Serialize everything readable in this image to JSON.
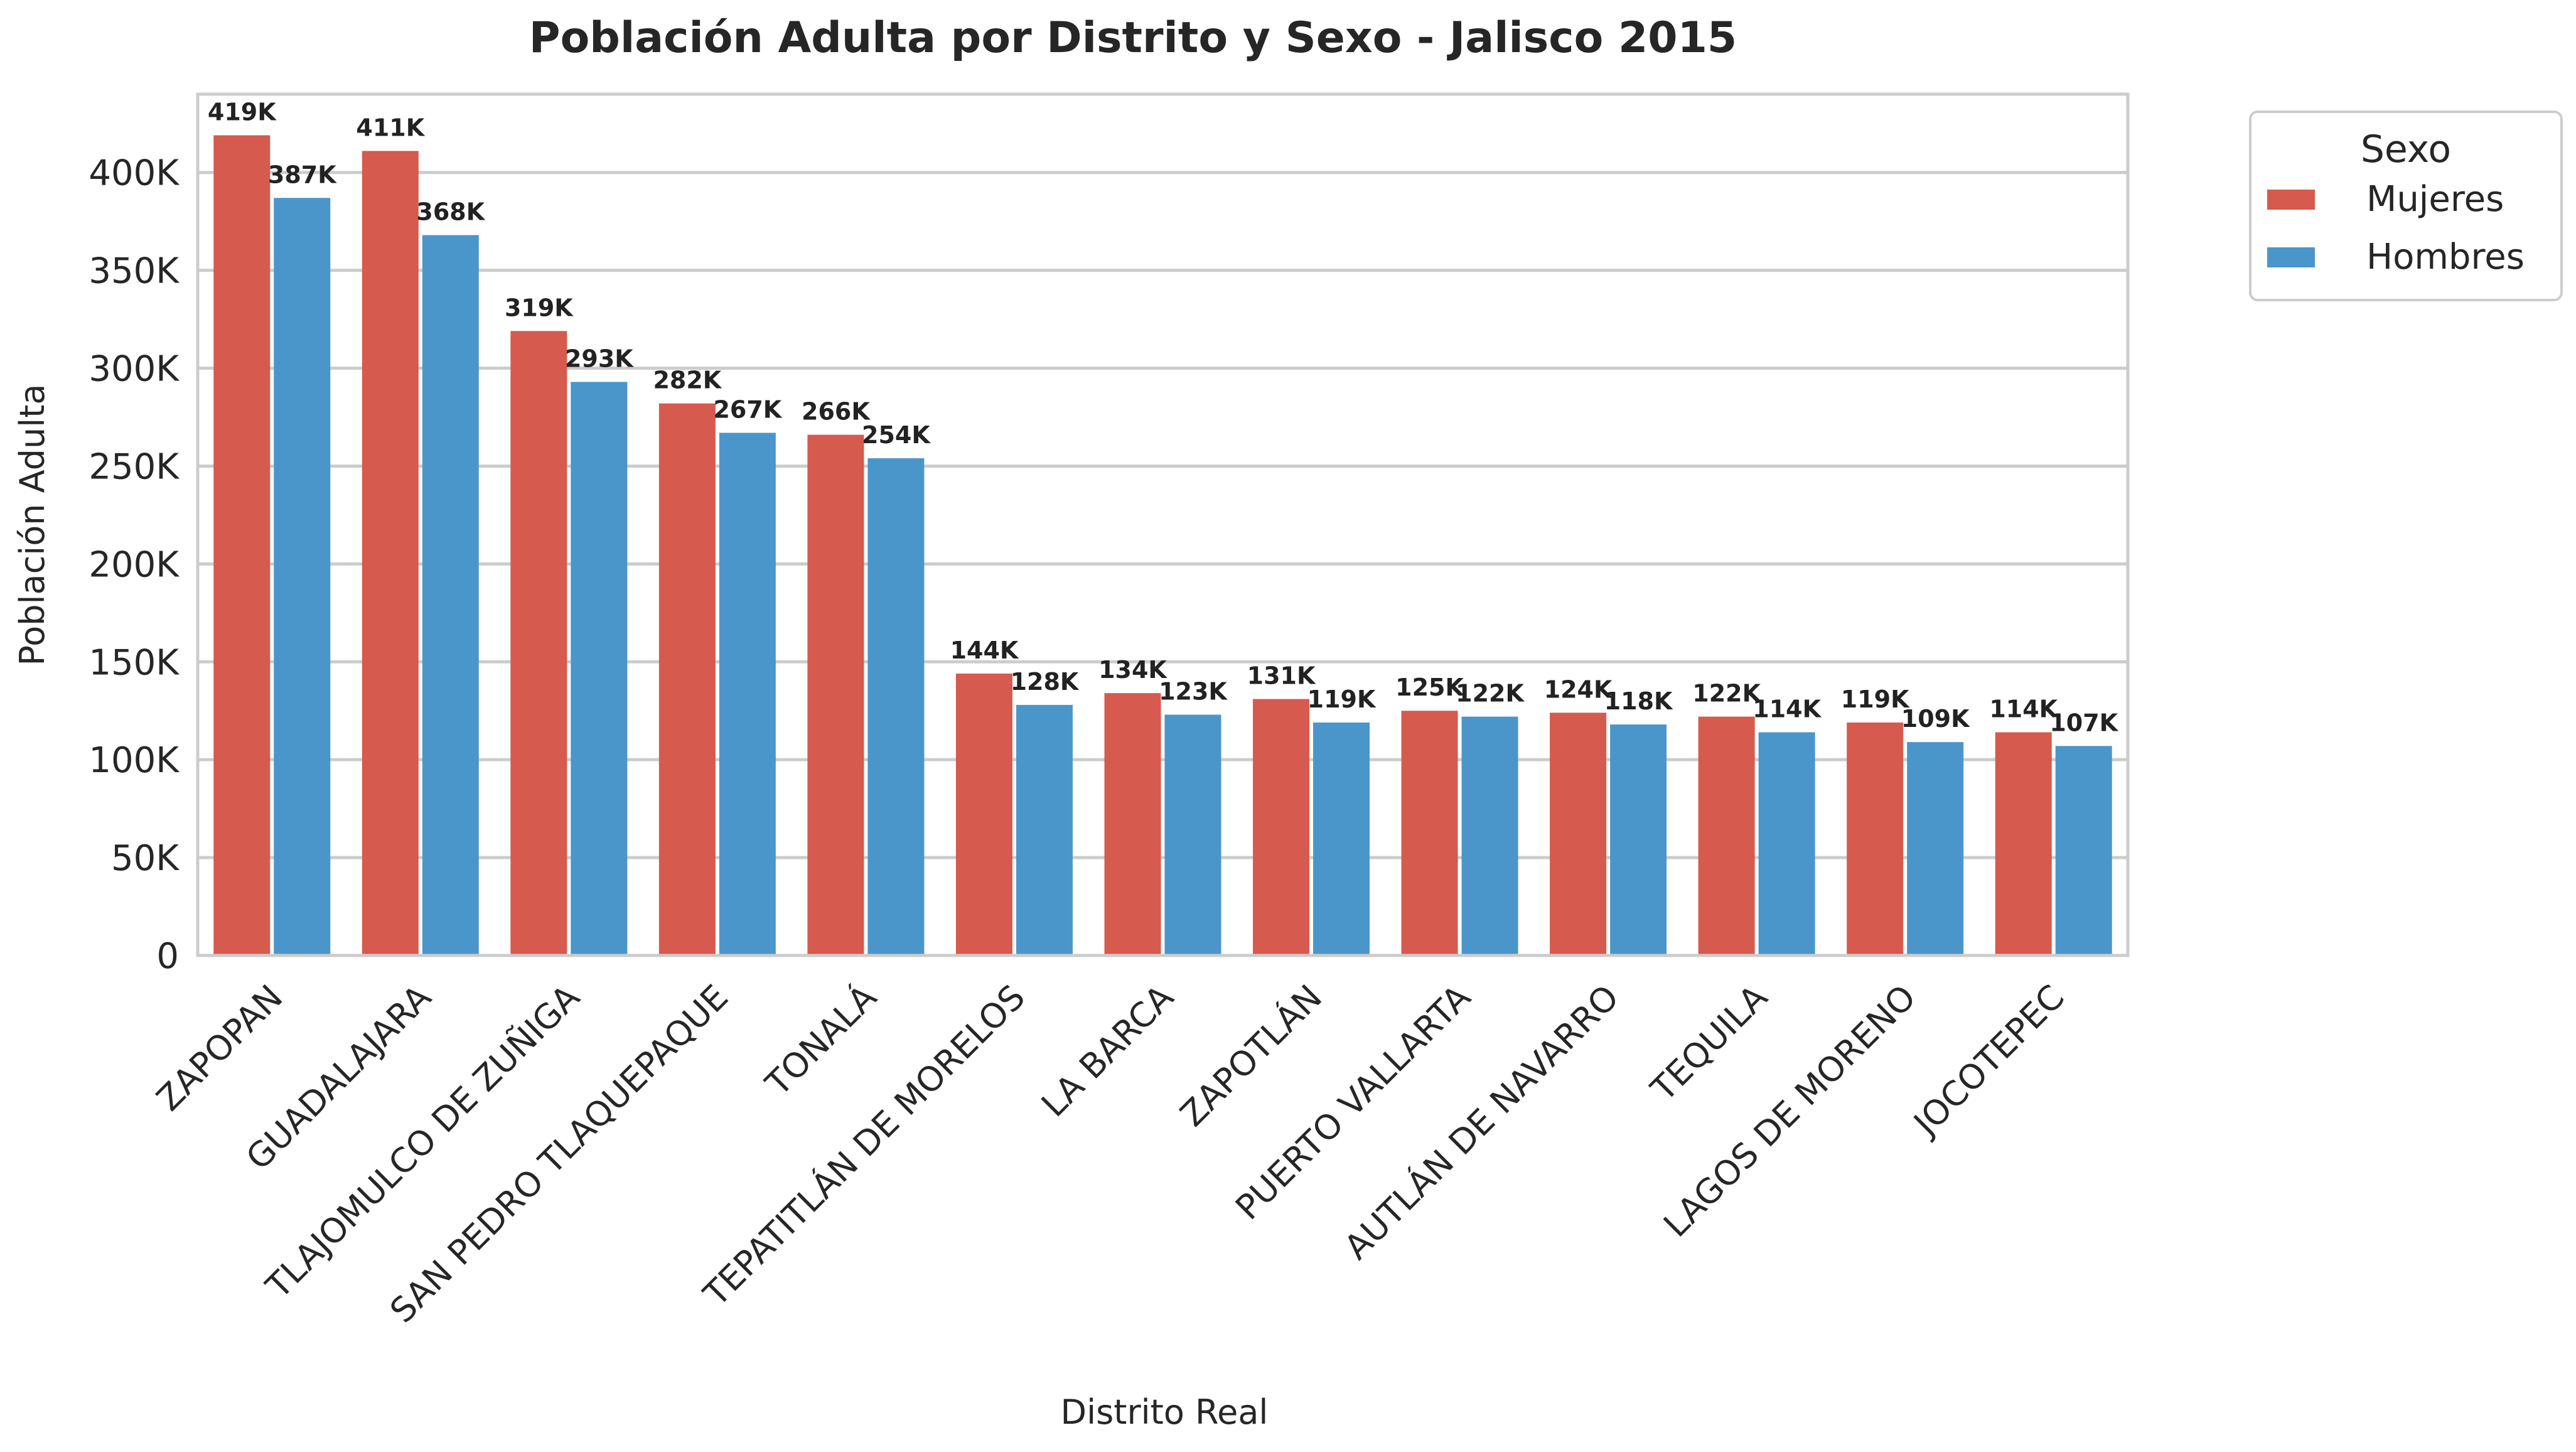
{
  "chart_data": {
    "type": "bar",
    "title": "Población Adulta por Distrito y Sexo - Jalisco 2015",
    "xlabel": "Distrito Real",
    "ylabel": "Población Adulta",
    "ylim": [
      0,
      440000
    ],
    "yticks": [
      0,
      50000,
      100000,
      150000,
      200000,
      250000,
      300000,
      350000,
      400000
    ],
    "ytick_labels": [
      "0",
      "50K",
      "100K",
      "150K",
      "200K",
      "250K",
      "300K",
      "350K",
      "400K"
    ],
    "grid": true,
    "legend": {
      "title": "Sexo",
      "position": "outside-top-right"
    },
    "categories": [
      "ZAPOPAN",
      "GUADALAJARA",
      "TLAJOMULCO DE ZUÑIGA",
      "SAN PEDRO TLAQUEPAQUE",
      "TONALÁ",
      "TEPATITLÁN DE MORELOS",
      "LA BARCA",
      "ZAPOTLÁN",
      "PUERTO VALLARTA",
      "AUTLÁN DE NAVARRO",
      "TEQUILA",
      "LAGOS DE MORENO",
      "JOCOTEPEC"
    ],
    "series": [
      {
        "name": "Mujeres",
        "color": "#d65a4d",
        "values": [
          419000,
          411000,
          319000,
          282000,
          266000,
          144000,
          134000,
          131000,
          125000,
          124000,
          122000,
          119000,
          114000
        ],
        "labels": [
          "419K",
          "411K",
          "319K",
          "282K",
          "266K",
          "144K",
          "134K",
          "131K",
          "125K",
          "124K",
          "122K",
          "119K",
          "114K"
        ]
      },
      {
        "name": "Hombres",
        "color": "#4a96ca",
        "values": [
          387000,
          368000,
          293000,
          267000,
          254000,
          128000,
          123000,
          119000,
          122000,
          118000,
          114000,
          109000,
          107000
        ],
        "labels": [
          "387K",
          "368K",
          "293K",
          "267K",
          "254K",
          "128K",
          "123K",
          "119K",
          "122K",
          "118K",
          "114K",
          "109K",
          "107K"
        ]
      }
    ]
  }
}
